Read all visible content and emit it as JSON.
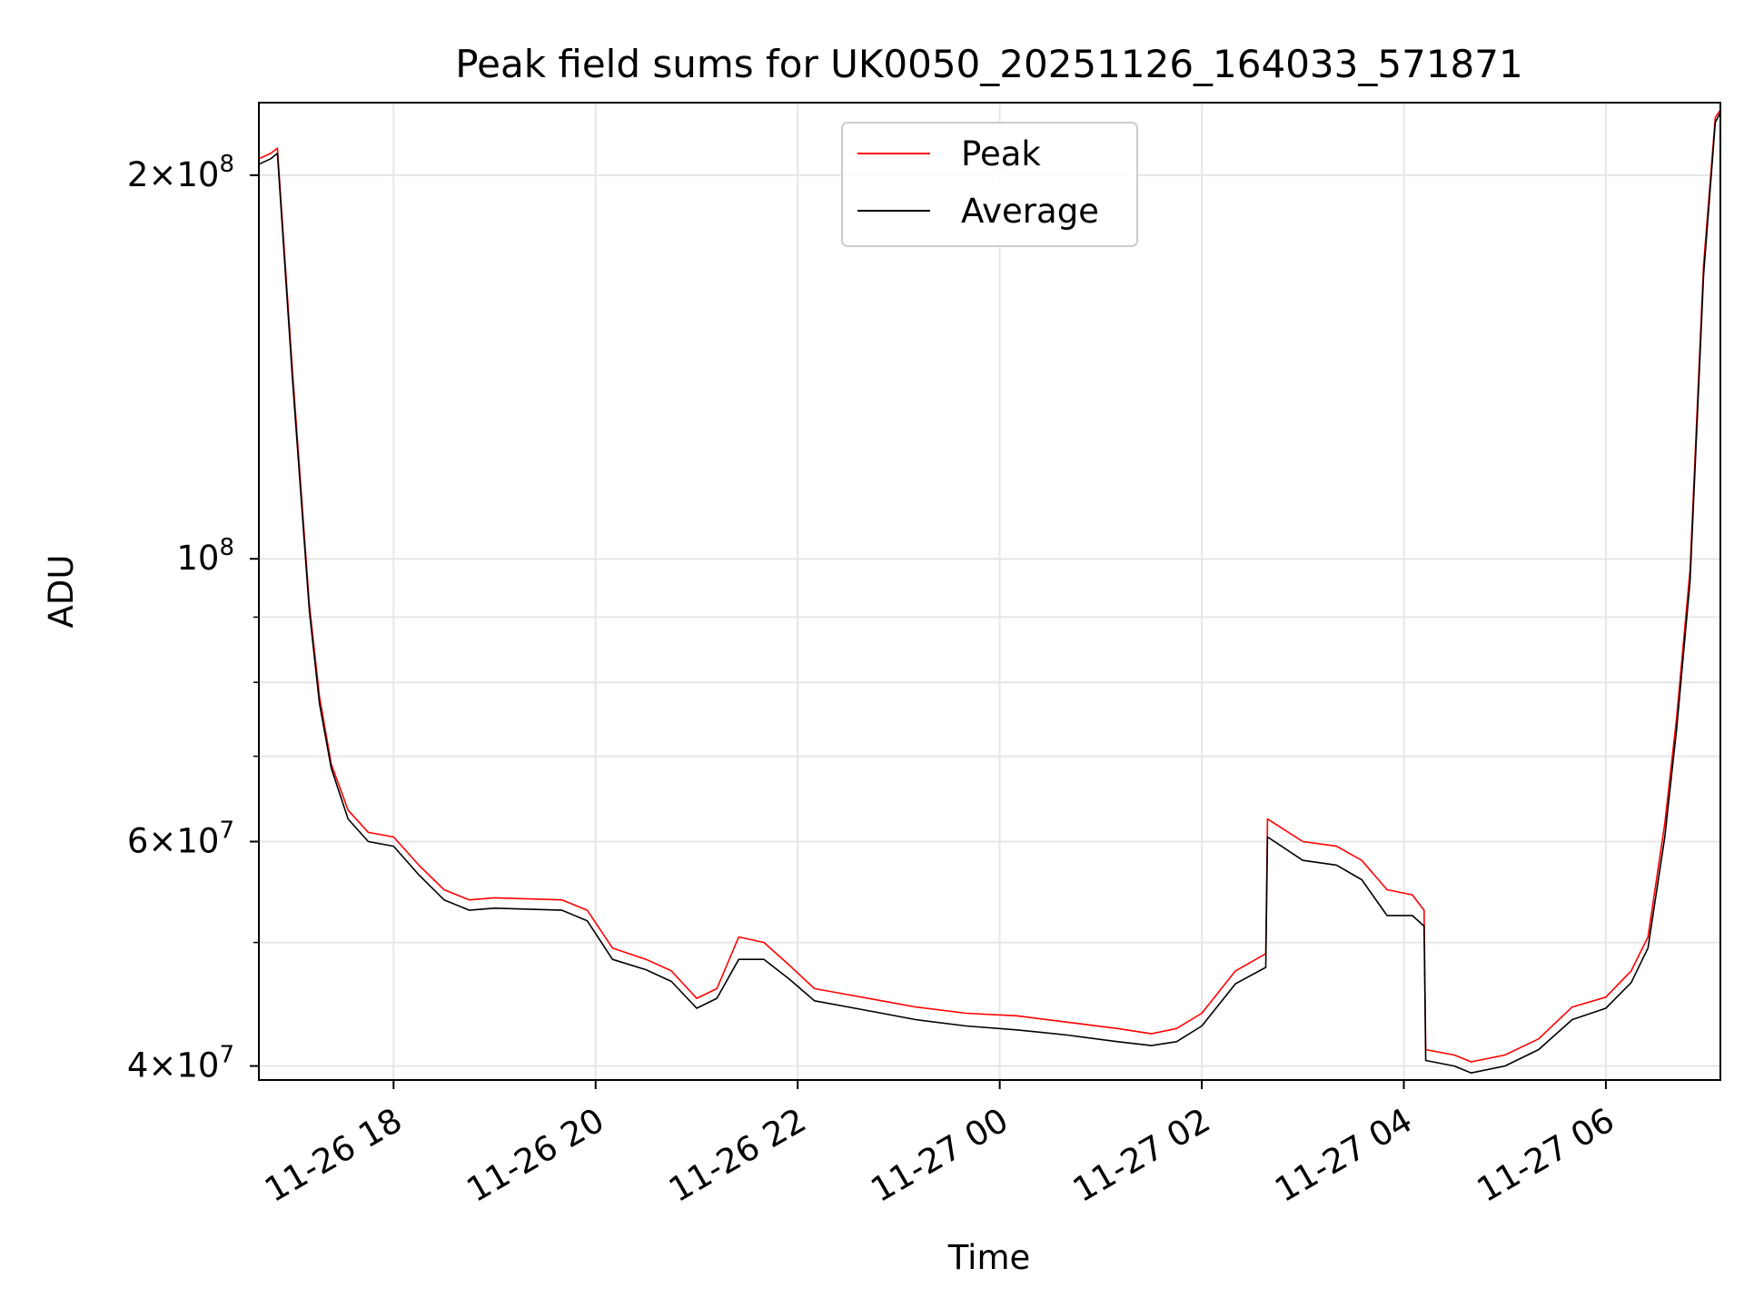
{
  "chart_data": {
    "type": "line",
    "title": "Peak field sums for UK0050_20251126_164033_571871",
    "xlabel": "Time",
    "ylabel": "ADU",
    "yscale": "log",
    "grid": true,
    "legend_position": "upper center",
    "xlim": [
      "2025-11-26 16:40",
      "2025-11-27 07:08"
    ],
    "ylim": [
      39000000,
      228000000
    ],
    "x_ticks": [
      {
        "t": "2025-11-26 18:00",
        "label": "11-26 18"
      },
      {
        "t": "2025-11-26 20:00",
        "label": "11-26 20"
      },
      {
        "t": "2025-11-26 22:00",
        "label": "11-26 22"
      },
      {
        "t": "2025-11-27 00:00",
        "label": "11-27 00"
      },
      {
        "t": "2025-11-27 02:00",
        "label": "11-27 02"
      },
      {
        "t": "2025-11-27 04:00",
        "label": "11-27 04"
      },
      {
        "t": "2025-11-27 06:00",
        "label": "11-27 06"
      }
    ],
    "y_ticks_major": [
      {
        "v": 40000000,
        "base": "4",
        "exp": "7"
      },
      {
        "v": 60000000,
        "base": "6",
        "exp": "7"
      },
      {
        "v": 100000000,
        "base": "",
        "exp": "8"
      },
      {
        "v": 200000000,
        "base": "2",
        "exp": "8"
      }
    ],
    "y_ticks_minor": [
      50000000,
      70000000,
      80000000,
      90000000
    ],
    "series": [
      {
        "name": "Peak",
        "color": "#ff0000",
        "x": [
          "2025-11-26 16:40",
          "2025-11-26 16:47",
          "2025-11-26 16:51",
          "2025-11-26 17:00",
          "2025-11-26 17:10",
          "2025-11-26 17:16",
          "2025-11-26 17:23",
          "2025-11-26 17:33",
          "2025-11-26 17:45",
          "2025-11-26 18:00",
          "2025-11-26 18:15",
          "2025-11-26 18:30",
          "2025-11-26 18:45",
          "2025-11-26 19:00",
          "2025-11-26 19:20",
          "2025-11-26 19:40",
          "2025-11-26 19:55",
          "2025-11-26 20:10",
          "2025-11-26 20:30",
          "2025-11-26 20:45",
          "2025-11-26 21:00",
          "2025-11-26 21:12",
          "2025-11-26 21:25",
          "2025-11-26 21:40",
          "2025-11-26 21:55",
          "2025-11-26 22:10",
          "2025-11-26 22:30",
          "2025-11-26 22:50",
          "2025-11-26 23:10",
          "2025-11-26 23:40",
          "2025-11-27 00:10",
          "2025-11-27 00:40",
          "2025-11-27 01:10",
          "2025-11-27 01:30",
          "2025-11-27 01:45",
          "2025-11-27 02:00",
          "2025-11-27 02:20",
          "2025-11-27 02:38",
          "2025-11-27 02:39",
          "2025-11-27 03:00",
          "2025-11-27 03:20",
          "2025-11-27 03:35",
          "2025-11-27 03:50",
          "2025-11-27 04:05",
          "2025-11-27 04:12",
          "2025-11-27 04:13",
          "2025-11-27 04:30",
          "2025-11-27 04:40",
          "2025-11-27 05:00",
          "2025-11-27 05:20",
          "2025-11-27 05:40",
          "2025-11-27 06:00",
          "2025-11-27 06:15",
          "2025-11-27 06:25",
          "2025-11-27 06:35",
          "2025-11-27 06:42",
          "2025-11-27 06:50",
          "2025-11-27 06:58",
          "2025-11-27 07:05",
          "2025-11-27 07:08"
        ],
        "y": [
          206000000,
          208000000,
          210000000,
          140000000,
          92000000,
          78000000,
          69000000,
          63500000,
          61000000,
          60500000,
          57500000,
          55000000,
          54000000,
          54200000,
          54100000,
          54000000,
          53000000,
          49500000,
          48500000,
          47500000,
          45200000,
          46000000,
          50500000,
          50000000,
          48000000,
          46000000,
          45500000,
          45000000,
          44500000,
          44000000,
          43800000,
          43300000,
          42800000,
          42400000,
          42800000,
          44000000,
          47500000,
          49000000,
          62500000,
          60000000,
          59500000,
          58000000,
          55000000,
          54500000,
          53000000,
          41200000,
          40800000,
          40300000,
          40800000,
          42000000,
          44500000,
          45300000,
          47500000,
          50500000,
          62000000,
          75000000,
          98000000,
          170000000,
          222000000,
          225000000
        ]
      },
      {
        "name": "Average",
        "color": "#000000",
        "x": [
          "2025-11-26 16:40",
          "2025-11-26 16:47",
          "2025-11-26 16:51",
          "2025-11-26 17:00",
          "2025-11-26 17:10",
          "2025-11-26 17:16",
          "2025-11-26 17:23",
          "2025-11-26 17:33",
          "2025-11-26 17:45",
          "2025-11-26 18:00",
          "2025-11-26 18:15",
          "2025-11-26 18:30",
          "2025-11-26 18:45",
          "2025-11-26 19:00",
          "2025-11-26 19:20",
          "2025-11-26 19:40",
          "2025-11-26 19:55",
          "2025-11-26 20:10",
          "2025-11-26 20:30",
          "2025-11-26 20:45",
          "2025-11-26 21:00",
          "2025-11-26 21:12",
          "2025-11-26 21:25",
          "2025-11-26 21:40",
          "2025-11-26 21:55",
          "2025-11-26 22:10",
          "2025-11-26 22:30",
          "2025-11-26 22:50",
          "2025-11-26 23:10",
          "2025-11-26 23:40",
          "2025-11-27 00:10",
          "2025-11-27 00:40",
          "2025-11-27 01:10",
          "2025-11-27 01:30",
          "2025-11-27 01:45",
          "2025-11-27 02:00",
          "2025-11-27 02:20",
          "2025-11-27 02:38",
          "2025-11-27 02:39",
          "2025-11-27 03:00",
          "2025-11-27 03:20",
          "2025-11-27 03:35",
          "2025-11-27 03:50",
          "2025-11-27 04:05",
          "2025-11-27 04:12",
          "2025-11-27 04:13",
          "2025-11-27 04:30",
          "2025-11-27 04:40",
          "2025-11-27 05:00",
          "2025-11-27 05:20",
          "2025-11-27 05:40",
          "2025-11-27 06:00",
          "2025-11-27 06:15",
          "2025-11-27 06:25",
          "2025-11-27 06:35",
          "2025-11-27 06:42",
          "2025-11-27 06:50",
          "2025-11-27 06:58",
          "2025-11-27 07:05",
          "2025-11-27 07:08"
        ],
        "y": [
          204000000,
          206000000,
          208000000,
          138000000,
          91000000,
          77000000,
          68500000,
          62500000,
          60000000,
          59500000,
          56500000,
          54000000,
          53000000,
          53200000,
          53100000,
          53000000,
          52000000,
          48500000,
          47600000,
          46600000,
          44400000,
          45200000,
          48500000,
          48500000,
          46800000,
          45000000,
          44500000,
          44000000,
          43500000,
          43000000,
          42700000,
          42300000,
          41800000,
          41500000,
          41800000,
          43000000,
          46400000,
          47800000,
          60500000,
          58000000,
          57500000,
          56000000,
          52500000,
          52500000,
          51500000,
          40400000,
          40000000,
          39500000,
          40000000,
          41200000,
          43500000,
          44400000,
          46500000,
          49500000,
          60500000,
          73500000,
          96000000,
          167000000,
          220000000,
          224000000
        ]
      }
    ]
  }
}
